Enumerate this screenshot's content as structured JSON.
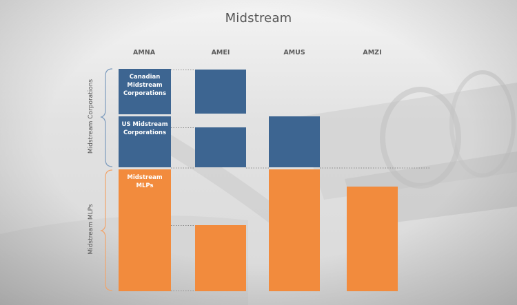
{
  "title": "Midstream",
  "columns": [
    "AMNA",
    "AMEI",
    "AMUS",
    "AMZI"
  ],
  "blocks": {
    "canadian": "Canadian Midstream Corporations",
    "us": "US Midstream Corporations",
    "mlps": "Midstream MLPs"
  },
  "groups": {
    "corporations": "Midstream Corporations",
    "mlps": "Midstream MLPs"
  },
  "colors": {
    "corporations": "#3d6591",
    "mlps": "#f28b3d",
    "bracket": "#7c9bbd"
  }
}
